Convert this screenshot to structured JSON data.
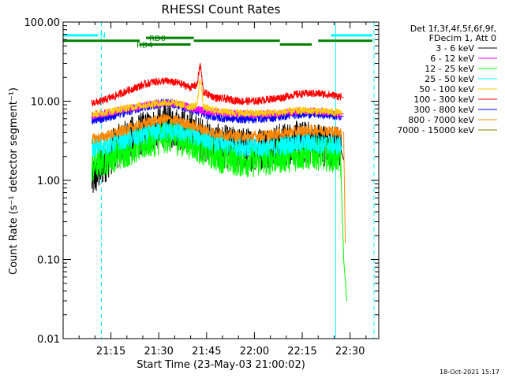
{
  "chart_data": {
    "type": "line",
    "title": "RHESSI Count Rates",
    "xlabel": "Start Time (23-May-03 21:00:02)",
    "ylabel": "Count Rate (s⁻¹ detector segment⁻¹)",
    "x_unit": "minutes after 21:00:02",
    "xlim": [
      0,
      99
    ],
    "ylim": [
      0.01,
      100
    ],
    "yscale": "log",
    "x_ticks": [
      {
        "value": 15,
        "label": "21:15"
      },
      {
        "value": 30,
        "label": "21:30"
      },
      {
        "value": 45,
        "label": "21:45"
      },
      {
        "value": 60,
        "label": "22:00"
      },
      {
        "value": 75,
        "label": "22:15"
      },
      {
        "value": 90,
        "label": "22:30"
      }
    ],
    "y_ticks": [
      {
        "value": 100,
        "label": "100.00"
      },
      {
        "value": 10,
        "label": "10.00"
      },
      {
        "value": 1,
        "label": "1.00"
      },
      {
        "value": 0.1,
        "label": "0.10"
      },
      {
        "value": 0.01,
        "label": "0.01"
      }
    ],
    "legend_header": [
      "Det 1f,3f,4f,5f,6f,9f,",
      "FDecim 1, Att 0"
    ],
    "legend_placement": "right",
    "series": [
      {
        "name": "3 - 6 keV",
        "color": "#000000",
        "x": [
          9,
          12,
          16,
          20,
          24,
          28,
          32,
          36,
          40,
          44,
          48,
          52,
          56,
          60,
          64,
          68,
          72,
          76,
          80,
          84,
          87,
          88
        ],
        "y": [
          1.0,
          1.5,
          2.5,
          3.2,
          3.8,
          4.3,
          4.9,
          4.6,
          4.0,
          3.3,
          2.8,
          2.6,
          2.5,
          2.5,
          2.6,
          2.8,
          3.0,
          3.0,
          2.9,
          2.7,
          2.5,
          1.8
        ]
      },
      {
        "name": "6 - 12 keV",
        "color": "#ff00ff",
        "x": [
          9,
          12,
          16,
          20,
          24,
          28,
          32,
          36,
          40,
          44,
          48,
          52,
          56,
          60,
          64,
          68,
          72,
          76,
          80,
          84,
          87,
          88
        ],
        "y": [
          6.6,
          6.9,
          7.4,
          8.0,
          8.6,
          9.1,
          9.4,
          9.1,
          8.3,
          7.6,
          7.3,
          7.1,
          6.9,
          6.8,
          6.9,
          7.0,
          7.3,
          7.5,
          7.4,
          7.2,
          7.0,
          6.9
        ]
      },
      {
        "name": "12 - 25 keV",
        "color": "#00ff00",
        "x": [
          9,
          12,
          16,
          20,
          24,
          28,
          32,
          36,
          40,
          44,
          48,
          52,
          56,
          60,
          64,
          68,
          72,
          76,
          80,
          84,
          87,
          88,
          89
        ],
        "y": [
          1.5,
          1.8,
          2.1,
          2.4,
          2.8,
          3.2,
          3.6,
          3.4,
          3.0,
          2.5,
          2.1,
          1.9,
          1.8,
          1.8,
          1.9,
          2.0,
          2.1,
          2.2,
          2.2,
          2.1,
          2.0,
          0.1,
          0.03
        ]
      },
      {
        "name": "25 - 50 keV",
        "color": "#00ffff",
        "x": [
          9,
          12,
          16,
          20,
          24,
          28,
          32,
          36,
          40,
          44,
          48,
          52,
          56,
          60,
          64,
          68,
          72,
          76,
          80,
          84,
          87,
          88
        ],
        "y": [
          2.6,
          2.7,
          3.0,
          3.3,
          3.6,
          4.0,
          4.3,
          4.1,
          3.8,
          3.4,
          3.0,
          2.8,
          2.7,
          2.6,
          2.6,
          2.7,
          2.9,
          3.0,
          2.9,
          2.8,
          2.7,
          2.6
        ]
      },
      {
        "name": "50 - 100 keV",
        "color": "#ffcc00",
        "x": [
          9,
          12,
          16,
          20,
          24,
          28,
          32,
          36,
          40,
          42,
          43,
          44,
          48,
          52,
          56,
          60,
          64,
          68,
          72,
          76,
          80,
          84,
          87,
          88
        ],
        "y": [
          6.8,
          7.1,
          7.6,
          8.2,
          8.8,
          9.2,
          9.6,
          9.3,
          8.4,
          9.0,
          20.0,
          8.3,
          7.6,
          7.3,
          7.1,
          7.0,
          7.1,
          7.2,
          7.5,
          7.6,
          7.5,
          7.3,
          7.1,
          7.0
        ]
      },
      {
        "name": "100 - 300 keV",
        "color": "#ff0000",
        "x": [
          9,
          12,
          16,
          20,
          24,
          28,
          32,
          36,
          40,
          42,
          43,
          44,
          48,
          52,
          56,
          60,
          64,
          68,
          72,
          76,
          80,
          84,
          87,
          88
        ],
        "y": [
          9.5,
          10.0,
          11.5,
          13.5,
          15.5,
          17.5,
          18.0,
          17.0,
          15.0,
          16.0,
          30.0,
          13.0,
          11.0,
          10.5,
          10.0,
          10.0,
          10.5,
          11.0,
          12.0,
          12.5,
          12.5,
          12.0,
          11.5,
          11.0
        ]
      },
      {
        "name": "300 - 800 keV",
        "color": "#0000ff",
        "x": [
          9,
          12,
          16,
          20,
          24,
          28,
          32,
          36,
          40,
          44,
          48,
          52,
          56,
          60,
          64,
          68,
          72,
          76,
          80,
          84,
          87,
          88
        ],
        "y": [
          5.8,
          6.0,
          6.6,
          7.4,
          8.2,
          9.0,
          9.6,
          9.0,
          8.0,
          7.0,
          6.3,
          6.1,
          6.0,
          6.0,
          6.2,
          6.4,
          6.8,
          7.0,
          6.9,
          6.7,
          6.5,
          6.4
        ]
      },
      {
        "name": "800 - 7000 keV",
        "color": "#ff8800",
        "x": [
          9,
          12,
          16,
          20,
          24,
          28,
          32,
          36,
          40,
          44,
          48,
          52,
          56,
          60,
          64,
          68,
          72,
          76,
          80,
          84,
          87,
          88,
          88.5
        ],
        "y": [
          3.3,
          3.5,
          3.9,
          4.4,
          5.0,
          5.6,
          6.0,
          5.6,
          5.0,
          4.4,
          3.9,
          3.7,
          3.6,
          3.6,
          3.7,
          3.9,
          4.1,
          4.3,
          4.3,
          4.2,
          4.1,
          4.0,
          0.16
        ]
      },
      {
        "name": "7000 - 15000 keV",
        "color": "#808000",
        "x": [],
        "y": []
      }
    ],
    "state_bars": [
      {
        "label": "N",
        "color": "#00ffff",
        "y": 68,
        "spans": [
          [
            0,
            11
          ],
          [
            84,
            97
          ]
        ]
      },
      {
        "label": "RD0",
        "color": "#008000",
        "y": 63,
        "spans": [
          [
            26,
            41
          ]
        ]
      },
      {
        "label": "",
        "color": "#008000",
        "y": 58,
        "spans": [
          [
            0,
            24
          ],
          [
            41,
            68
          ],
          [
            80,
            97
          ]
        ]
      },
      {
        "label": "RD4",
        "color": "#008000",
        "y": 52,
        "spans": [
          [
            24,
            40
          ],
          [
            68,
            78
          ]
        ]
      }
    ],
    "vertical_lines": [
      {
        "x": 0,
        "color": "#00ffff",
        "style": "solid"
      },
      {
        "x": 12,
        "color": "#00ffff",
        "style": "dashed"
      },
      {
        "x": 85.5,
        "color": "#00ffff",
        "style": "solid"
      },
      {
        "x": 97.5,
        "color": "#00ffff",
        "style": "dashed"
      }
    ],
    "grid": false
  },
  "footer_timestamp": "18-Oct-2021 15:17"
}
